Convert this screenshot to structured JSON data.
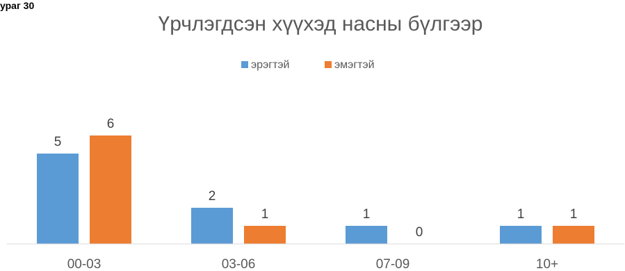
{
  "figure_caption_fragment": "ураг 30",
  "chart_data": {
    "type": "bar",
    "title": "Үрчлэгдсэн хүүхэд насны бүлгээр",
    "categories": [
      "00-03",
      "03-06",
      "07-09",
      "10+"
    ],
    "series": [
      {
        "name": "эрэгтэй",
        "values": [
          5,
          2,
          1,
          1
        ],
        "color": "#5B9BD5"
      },
      {
        "name": "эмэгтэй",
        "values": [
          6,
          1,
          0,
          1
        ],
        "color": "#ED7D31"
      }
    ],
    "ylim": [
      0,
      6
    ],
    "legend_position": "top",
    "grid": false,
    "axis_color": "#D9D9D9"
  }
}
